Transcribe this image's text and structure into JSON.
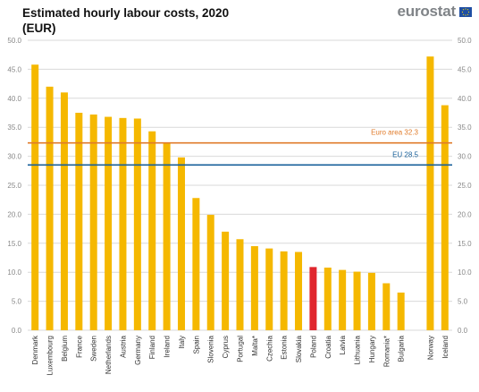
{
  "title": {
    "line1": "Estimated hourly labour costs, 2020",
    "line2": "(EUR)"
  },
  "logo": {
    "text": "eurostat",
    "flag_icon": "eu-flag-icon"
  },
  "colors": {
    "bar": "#f5b800",
    "highlight": "#e0262e",
    "euro_area_line": "#e07b2a",
    "eu_line": "#165f9a",
    "grid": "#d9d9d9",
    "axis_text": "#888888",
    "euro_area_label": "#e07b2a",
    "eu_label": "#165f9a"
  },
  "chart_data": {
    "type": "bar",
    "ylim": [
      0,
      50
    ],
    "yticks": [
      "0.0",
      "5.0",
      "10.0",
      "15.0",
      "20.0",
      "25.0",
      "30.0",
      "35.0",
      "40.0",
      "45.0",
      "50.0"
    ],
    "ytick_values": [
      0,
      5,
      10,
      15,
      20,
      25,
      30,
      35,
      40,
      45,
      50
    ],
    "grid": true,
    "y_axis_both_sides": true,
    "categories": [
      "Denmark",
      "Luxembourg",
      "Belgium",
      "France",
      "Sweden",
      "Netherlands",
      "Austria",
      "Germany",
      "Finland",
      "Ireland",
      "Italy",
      "Spain",
      "Slovenia",
      "Cyprus",
      "Portugal",
      "Malta*",
      "Czechia",
      "Estonia",
      "Slovakia",
      "Poland",
      "Croatia",
      "Latvia",
      "Lithuania",
      "Hungary",
      "Romania*",
      "Bulgaria",
      "",
      "Norway",
      "Iceland"
    ],
    "values": [
      45.8,
      42.0,
      41.0,
      37.5,
      37.2,
      36.8,
      36.6,
      36.5,
      34.3,
      32.3,
      29.8,
      22.8,
      19.9,
      17.0,
      15.7,
      14.5,
      14.1,
      13.6,
      13.5,
      10.9,
      10.8,
      10.4,
      10.1,
      9.9,
      8.1,
      6.5,
      null,
      47.2,
      38.8
    ],
    "highlight": "Poland",
    "reference_lines": [
      {
        "label": "Euro area 32.3",
        "value": 32.3,
        "color_key": "euro_area_line"
      },
      {
        "label": "EU 28.5",
        "value": 28.5,
        "color_key": "eu_line"
      }
    ]
  }
}
